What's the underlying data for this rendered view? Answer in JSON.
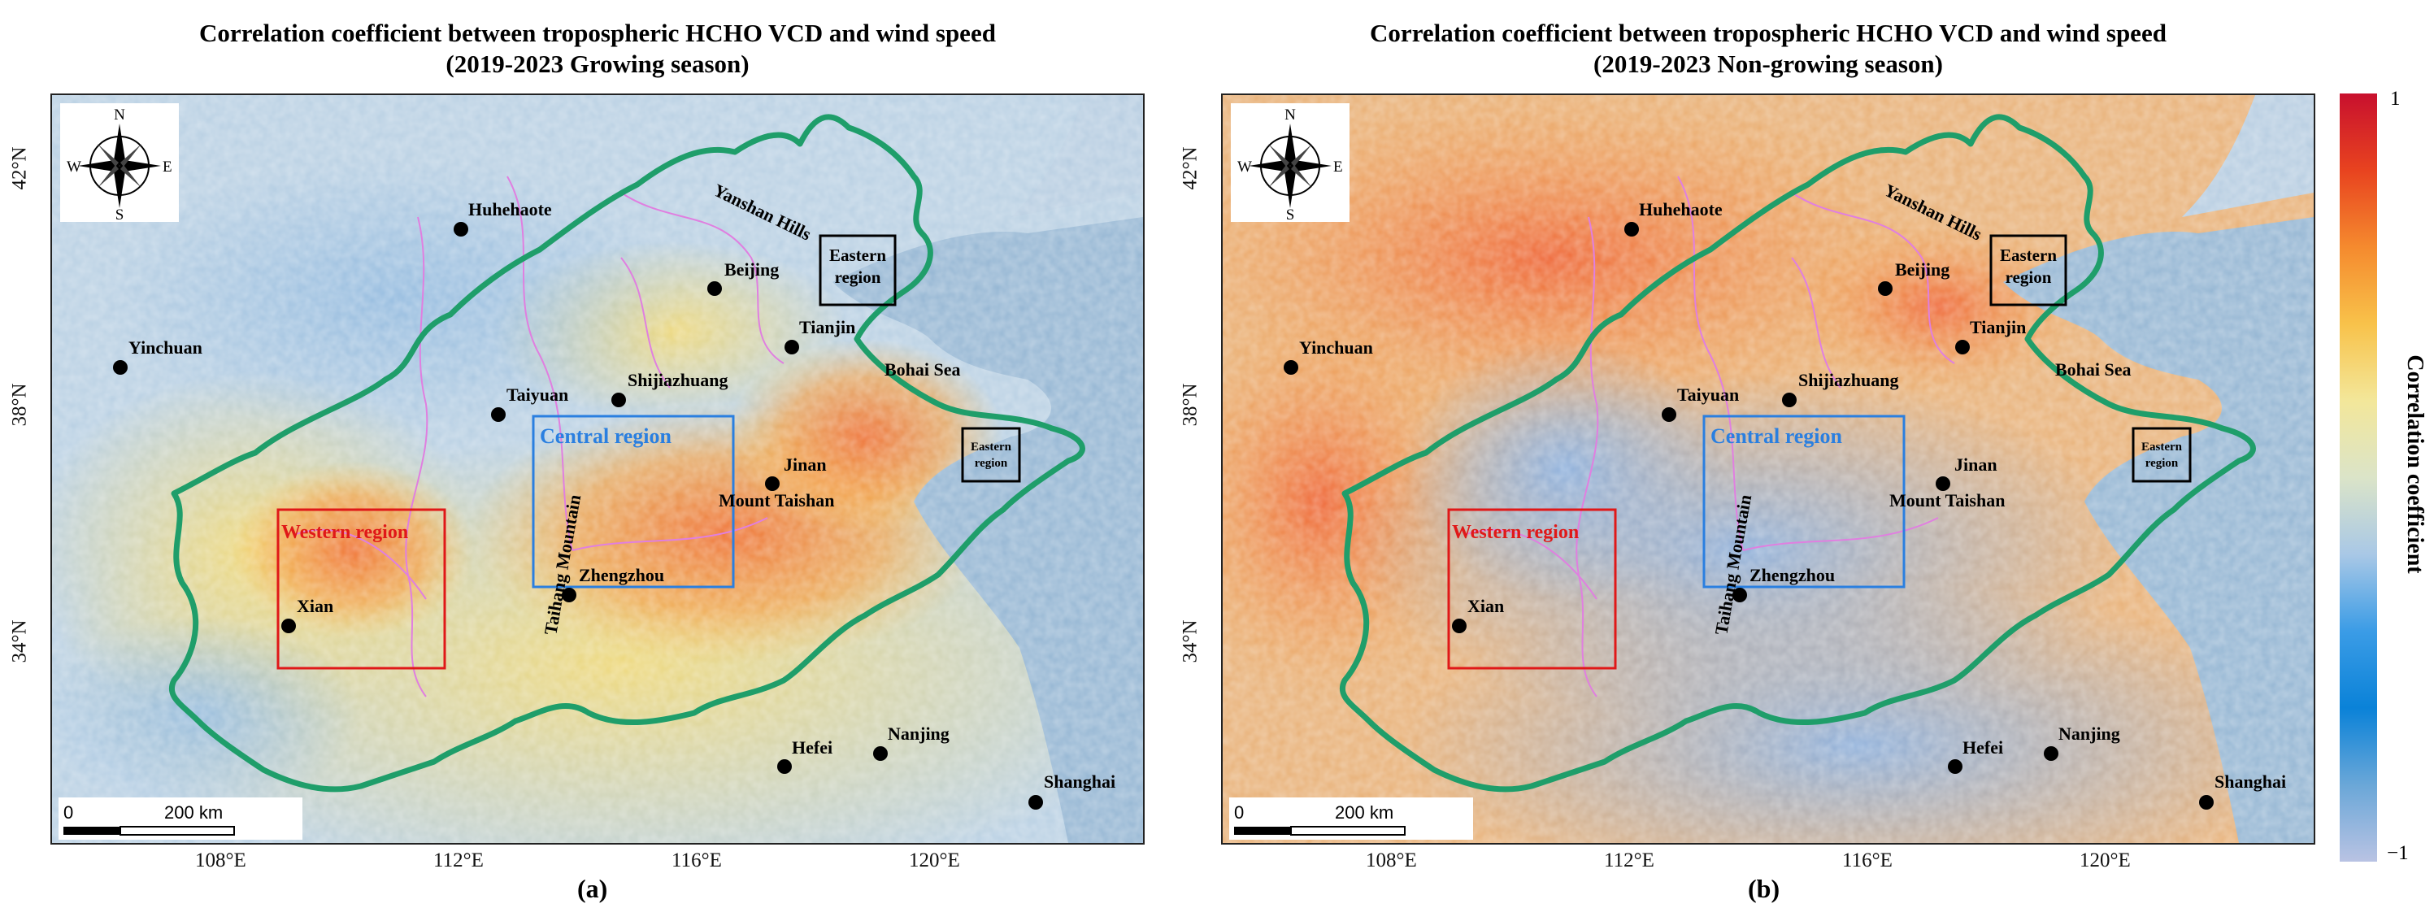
{
  "panels": [
    {
      "title_line1": "Correlation coefficient between tropospheric HCHO VCD and wind speed",
      "title_line2": "(2019-2023 Growing season)",
      "letter": "(a)",
      "season": "growing"
    },
    {
      "title_line1": "Correlation coefficient between tropospheric HCHO VCD and wind speed",
      "title_line2": "(2019-2023 Non-growing season)",
      "letter": "(b)",
      "season": "non-growing"
    }
  ],
  "axes": {
    "lon_ticks": [
      "108°E",
      "112°E",
      "116°E",
      "120°E"
    ],
    "lat_ticks": [
      "42°N",
      "38°N",
      "34°N"
    ]
  },
  "cities": {
    "huhehaote": "Huhehaote",
    "beijing": "Beijing",
    "tianjin": "Tianjin",
    "yinchuan": "Yinchuan",
    "taiyuan": "Taiyuan",
    "shijiazhuang": "Shijiazhuang",
    "jinan": "Jinan",
    "mount_taishan": "Mount Taishan",
    "xian": "Xian",
    "zhengzhou": "Zhengzhou",
    "hefei": "Hefei",
    "nanjing": "Nanjing",
    "shanghai": "Shanghai"
  },
  "features": {
    "yanshan": "Yanshan Hills",
    "taihang": "Taihang Mountain",
    "bohai": "Bohai Sea"
  },
  "regions": {
    "western": "Western region",
    "central": "Central region",
    "eastern_line1": "Eastern",
    "eastern_line2": "region"
  },
  "compass": {
    "n": "N",
    "s": "S",
    "e": "E",
    "w": "W"
  },
  "scale_bar": {
    "zero": "0",
    "distance": "200 km"
  },
  "colorbar": {
    "title": "Correlation coefficient",
    "max_label": "1",
    "min_label": "−1",
    "colors": [
      "#c8102e",
      "#e8431f",
      "#f58a2e",
      "#f8c24a",
      "#f3e79a",
      "#dbe4c8",
      "#a9c8e6",
      "#3b9ce6",
      "#0a82d8",
      "#6aa7d8",
      "#b9c3e3"
    ]
  }
}
